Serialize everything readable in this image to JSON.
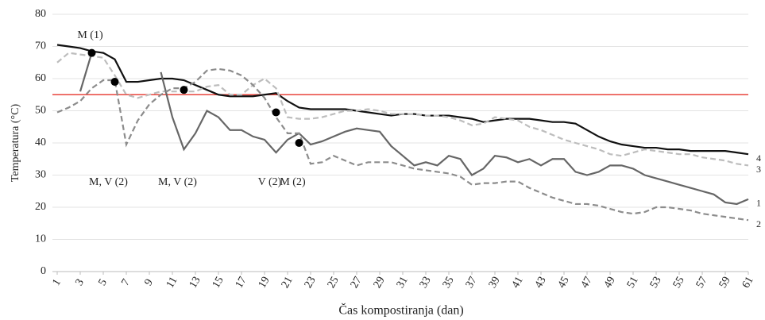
{
  "chart_data": {
    "type": "line",
    "x_label": "Čas kompostiranja (dan)",
    "y_label": "Temperatura (°C)",
    "x": [
      1,
      2,
      3,
      4,
      5,
      6,
      7,
      8,
      9,
      10,
      11,
      12,
      13,
      14,
      15,
      16,
      17,
      18,
      19,
      20,
      21,
      22,
      23,
      24,
      25,
      26,
      27,
      28,
      29,
      30,
      31,
      32,
      33,
      34,
      35,
      36,
      37,
      38,
      39,
      40,
      41,
      42,
      43,
      44,
      45,
      46,
      47,
      48,
      49,
      50,
      51,
      52,
      53,
      54,
      55,
      56,
      57,
      58,
      59,
      60,
      61
    ],
    "xlim": [
      1,
      61
    ],
    "xticks": [
      1,
      3,
      5,
      7,
      9,
      11,
      13,
      15,
      17,
      19,
      21,
      23,
      25,
      27,
      29,
      31,
      33,
      35,
      37,
      39,
      41,
      43,
      45,
      47,
      49,
      51,
      53,
      55,
      57,
      59,
      61
    ],
    "ylim": [
      0,
      80
    ],
    "yticks": [
      0,
      10,
      20,
      30,
      40,
      50,
      60,
      70,
      80
    ],
    "grid": true,
    "threshold": 55,
    "threshold_color": "#e8453c",
    "series": [
      {
        "name": "4",
        "color": "#111111",
        "dash": "none",
        "values": [
          70.5,
          70,
          69.5,
          68.5,
          68,
          66,
          59,
          59,
          59.5,
          60,
          60,
          59.5,
          58,
          56.5,
          55,
          54.5,
          54.5,
          54.5,
          55,
          55.5,
          53,
          51,
          50.5,
          50.5,
          50.5,
          50.5,
          50,
          49.5,
          49,
          48.5,
          49,
          49,
          48.5,
          48.5,
          48.5,
          48,
          47.5,
          46.5,
          47,
          47.5,
          47.5,
          47.5,
          47,
          46.5,
          46.5,
          46,
          44,
          42,
          40.5,
          39.5,
          39,
          38.5,
          38.5,
          38,
          38,
          37.5,
          37.5,
          37.5,
          37.5,
          37,
          36.5
        ]
      },
      {
        "name": "3",
        "color": "#bdbdbd",
        "dash": "7 4",
        "values": [
          65,
          68,
          67.5,
          67,
          66.5,
          61,
          55,
          54,
          55,
          56,
          56,
          56,
          56,
          57.5,
          58,
          55,
          55,
          58,
          60,
          57,
          48,
          47.5,
          47.5,
          48,
          49,
          50,
          50,
          50.5,
          50,
          49,
          49,
          49,
          48.5,
          48.5,
          48,
          47,
          45.5,
          46,
          48,
          47.5,
          47,
          45,
          44,
          42.5,
          41,
          40,
          39,
          38,
          36.5,
          36,
          37,
          38,
          37.5,
          37,
          36.5,
          36.5,
          35.5,
          35,
          34.5,
          33.5,
          33
        ]
      },
      {
        "name": "1",
        "color": "#666666",
        "dash": "none",
        "values": [
          null,
          null,
          56,
          68,
          null,
          null,
          null,
          null,
          null,
          62,
          48,
          38,
          43,
          50,
          48,
          44,
          44,
          42,
          41,
          37,
          41,
          43,
          39.5,
          40.5,
          42,
          43.5,
          44.5,
          44,
          43.5,
          39,
          36,
          33,
          34,
          33,
          36,
          35,
          30,
          32,
          36,
          35.5,
          34,
          35,
          33,
          35,
          35,
          31,
          30,
          31,
          33,
          33,
          32,
          30,
          29,
          28,
          27,
          26,
          25,
          24,
          21.5,
          21,
          22.5
        ]
      },
      {
        "name": "2",
        "color": "#8c8c8c",
        "dash": "7 4",
        "values": [
          49.5,
          51,
          53,
          57,
          59.5,
          59.5,
          39.5,
          47,
          52,
          55,
          57,
          57,
          59,
          62.5,
          63,
          62.5,
          61,
          58,
          54,
          48,
          43,
          43,
          33.5,
          34,
          36,
          34.5,
          33,
          34,
          34,
          34,
          33,
          32,
          31.5,
          31,
          30.5,
          29.5,
          27,
          27.5,
          27.5,
          28,
          28,
          26,
          24.5,
          23,
          22,
          21,
          21,
          20.5,
          19.5,
          18.5,
          18,
          18.5,
          20,
          20,
          19.5,
          19,
          18,
          17.5,
          17,
          16.5,
          16
        ]
      }
    ],
    "annotations": [
      {
        "label": "M (1)",
        "x": 4,
        "y": 68
      },
      {
        "label": "M, V (2)",
        "x": 6,
        "y": 59
      },
      {
        "label": "M, V (2)",
        "x": 12,
        "y": 56.5
      },
      {
        "label": "V (2)",
        "x": 20,
        "y": 49.5
      },
      {
        "label": "M (2)",
        "x": 22,
        "y": 40
      }
    ]
  }
}
